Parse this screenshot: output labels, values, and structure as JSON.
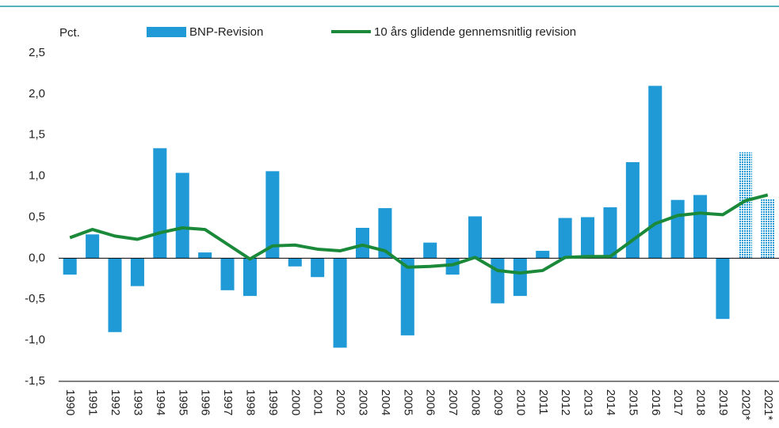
{
  "chart_data": {
    "type": "bar",
    "ylabel": "Pct.",
    "categories": [
      "1990",
      "1991",
      "1992",
      "1993",
      "1994",
      "1995",
      "1996",
      "1997",
      "1998",
      "1999",
      "2000",
      "2001",
      "2002",
      "2003",
      "2004",
      "2005",
      "2006",
      "2007",
      "2008",
      "2009",
      "2010",
      "2011",
      "2012",
      "2013",
      "2014",
      "2015",
      "2016",
      "2017",
      "2018",
      "2019",
      "2020*",
      "2021*"
    ],
    "series": [
      {
        "name": "BNP-Revision",
        "type": "bar",
        "color": "#1f9ad6",
        "values": [
          -0.2,
          0.29,
          -0.9,
          -0.34,
          1.34,
          1.04,
          0.07,
          -0.39,
          -0.46,
          1.06,
          -0.1,
          -0.23,
          -1.09,
          0.37,
          0.61,
          -0.94,
          0.19,
          -0.2,
          0.51,
          -0.55,
          -0.46,
          0.09,
          0.49,
          0.5,
          0.62,
          1.17,
          2.1,
          0.71,
          0.77,
          -0.74,
          1.29,
          0.72
        ]
      },
      {
        "name": "10 års glidende gennemsnitlig revision",
        "type": "line",
        "color": "#1a8a3a",
        "values": [
          0.25,
          0.35,
          0.27,
          0.23,
          0.31,
          0.37,
          0.35,
          0.17,
          -0.01,
          0.15,
          0.16,
          0.11,
          0.09,
          0.16,
          0.09,
          -0.11,
          -0.1,
          -0.08,
          0.01,
          -0.15,
          -0.18,
          -0.15,
          0.01,
          0.02,
          0.02,
          0.22,
          0.42,
          0.52,
          0.55,
          0.53,
          0.7,
          0.77
        ]
      }
    ],
    "ylim": [
      -1.5,
      2.5
    ],
    "yticks": [
      {
        "value": -1.5,
        "label": "-1,5"
      },
      {
        "value": -1,
        "label": "-1,0"
      },
      {
        "value": -0.5,
        "label": "-0,5"
      },
      {
        "value": 0,
        "label": "0,0"
      },
      {
        "value": 0.5,
        "label": "0,5"
      },
      {
        "value": 1,
        "label": "1,0"
      },
      {
        "value": 1.5,
        "label": "1,5"
      },
      {
        "value": 2,
        "label": "2,0"
      },
      {
        "value": 2.5,
        "label": "2,5"
      }
    ],
    "grid": false
  }
}
